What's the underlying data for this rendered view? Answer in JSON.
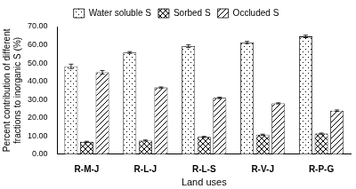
{
  "chart_data": {
    "type": "bar",
    "x_label": "Land uses",
    "y_label": [
      "Percent contribution of different",
      "fractions to inorganic S (%)"
    ],
    "categories": [
      "R-M-J",
      "R-L-J",
      "R-L-S",
      "R-V-J",
      "R-P-G"
    ],
    "series": [
      {
        "name": "Water soluble S",
        "color": "#000000",
        "values": [
          48.2,
          55.8,
          59.3,
          61.3,
          64.6
        ],
        "errors": [
          1.2,
          0.5,
          0.8,
          0.6,
          0.7
        ]
      },
      {
        "name": "Sorbed S",
        "color": "#000000",
        "values": [
          6.8,
          7.5,
          9.5,
          10.7,
          11.3
        ],
        "errors": [
          0.3,
          0.3,
          0.3,
          0.3,
          0.3
        ]
      },
      {
        "name": "Occluded S",
        "color": "#000000",
        "values": [
          44.9,
          36.6,
          30.9,
          27.9,
          23.9
        ],
        "errors": [
          1.0,
          0.3,
          0.4,
          0.3,
          0.4
        ]
      }
    ],
    "ylim": [
      0,
      70
    ],
    "yticks": [
      {
        "value": 0,
        "label": "0.00"
      },
      {
        "value": 10,
        "label": "10.00"
      },
      {
        "value": 20,
        "label": "20.00"
      },
      {
        "value": 30,
        "label": "30.00"
      },
      {
        "value": 40,
        "label": "40.00"
      },
      {
        "value": 50,
        "label": "50.00"
      },
      {
        "value": 60,
        "label": "60.00"
      },
      {
        "value": 70,
        "label": "70.00"
      }
    ],
    "grid": false,
    "legend": "top"
  }
}
